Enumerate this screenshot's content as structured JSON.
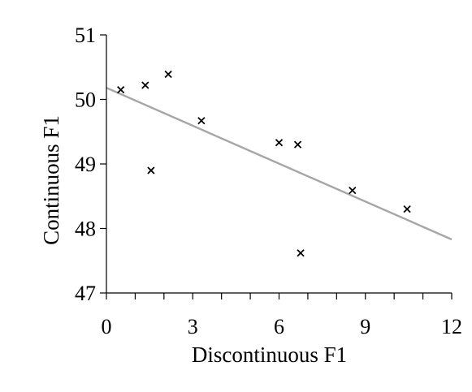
{
  "chart_data": {
    "type": "scatter",
    "xlabel": "Discontinuous F1",
    "ylabel": "Continuous F1",
    "xlim": [
      0,
      12
    ],
    "ylim": [
      47,
      51
    ],
    "x_ticks": [
      "0",
      "3",
      "6",
      "9",
      "12"
    ],
    "y_ticks": [
      "47",
      "48",
      "49",
      "50",
      "51"
    ],
    "x_tick_values": [
      0,
      3,
      6,
      9,
      12
    ],
    "y_tick_values": [
      47,
      48,
      49,
      50,
      51
    ],
    "minor_x_step": 1,
    "grid": false,
    "marker": "x",
    "points": [
      {
        "x": 0.5,
        "y": 50.15
      },
      {
        "x": 1.35,
        "y": 50.22
      },
      {
        "x": 2.15,
        "y": 50.39
      },
      {
        "x": 1.55,
        "y": 48.9
      },
      {
        "x": 3.3,
        "y": 49.67
      },
      {
        "x": 6.0,
        "y": 49.33
      },
      {
        "x": 6.65,
        "y": 49.3
      },
      {
        "x": 6.75,
        "y": 47.62
      },
      {
        "x": 8.55,
        "y": 48.59
      },
      {
        "x": 10.45,
        "y": 48.3
      }
    ],
    "trendline": {
      "type": "linear",
      "x": [
        0,
        12
      ],
      "y": [
        50.18,
        47.83
      ],
      "color": "#a6a6a6"
    },
    "colors": {
      "axis": "#000000",
      "marker": "#000000",
      "trendline": "#a6a6a6"
    }
  }
}
